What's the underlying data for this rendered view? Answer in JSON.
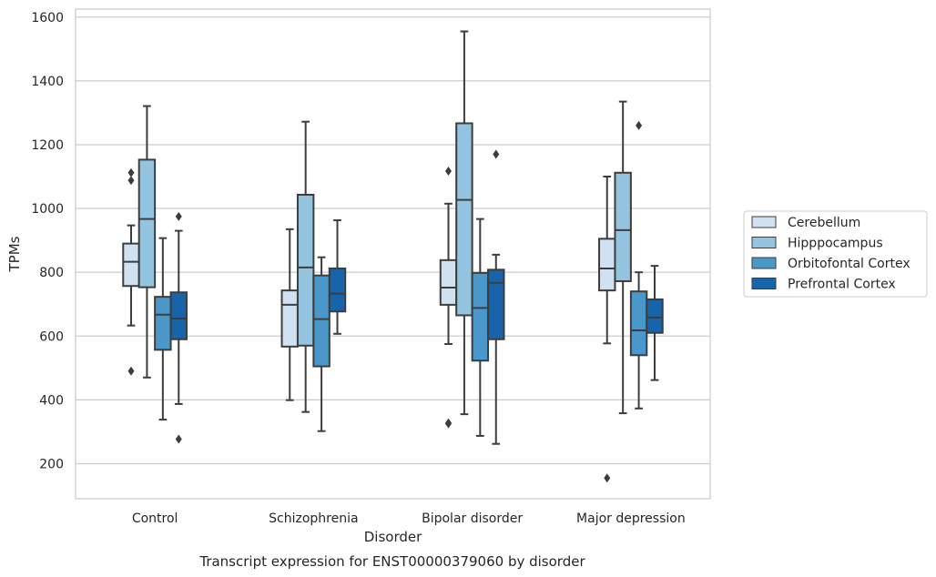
{
  "chart_data": {
    "type": "box",
    "title": "",
    "caption": "Transcript expression for ENST00000379060 by disorder",
    "xlabel": "Disorder",
    "ylabel": "TPMs",
    "ylim": [
      90,
      1625
    ],
    "yticks": [
      200,
      400,
      600,
      800,
      1000,
      1200,
      1400,
      1600
    ],
    "grid": "horizontal",
    "legend_position": "right",
    "categories": [
      "Control",
      "Schizophrenia",
      "Bipolar disorder",
      "Major depression"
    ],
    "series": [
      {
        "name": "Cerebellum",
        "color": "#d0e1f2",
        "boxes": [
          {
            "whisker_low": 633,
            "q1": 757,
            "median": 833,
            "q3": 890,
            "whisker_high": 947,
            "outliers": [
              1112,
              1088,
              490
            ]
          },
          {
            "whisker_low": 399,
            "q1": 567,
            "median": 698,
            "q3": 743,
            "whisker_high": 935,
            "outliers": []
          },
          {
            "whisker_low": 575,
            "q1": 698,
            "median": 752,
            "q3": 838,
            "whisker_high": 1015,
            "outliers": [
              1117,
              328,
              325
            ]
          },
          {
            "whisker_low": 577,
            "q1": 743,
            "median": 812,
            "q3": 905,
            "whisker_high": 1100,
            "outliers": [
              155
            ]
          }
        ]
      },
      {
        "name": "Hipppocampus",
        "color": "#94c4df",
        "boxes": [
          {
            "whisker_low": 470,
            "q1": 753,
            "median": 967,
            "q3": 1153,
            "whisker_high": 1321,
            "outliers": []
          },
          {
            "whisker_low": 362,
            "q1": 570,
            "median": 815,
            "q3": 1043,
            "whisker_high": 1272,
            "outliers": []
          },
          {
            "whisker_low": 355,
            "q1": 665,
            "median": 1027,
            "q3": 1267,
            "whisker_high": 1555,
            "outliers": []
          },
          {
            "whisker_low": 358,
            "q1": 772,
            "median": 932,
            "q3": 1112,
            "whisker_high": 1335,
            "outliers": []
          }
        ]
      },
      {
        "name": "Orbitofontal Cortex",
        "color": "#4a98c9",
        "boxes": [
          {
            "whisker_low": 338,
            "q1": 557,
            "median": 667,
            "q3": 723,
            "whisker_high": 907,
            "outliers": []
          },
          {
            "whisker_low": 302,
            "q1": 505,
            "median": 653,
            "q3": 790,
            "whisker_high": 847,
            "outliers": []
          },
          {
            "whisker_low": 287,
            "q1": 523,
            "median": 688,
            "q3": 798,
            "whisker_high": 967,
            "outliers": []
          },
          {
            "whisker_low": 373,
            "q1": 540,
            "median": 618,
            "q3": 740,
            "whisker_high": 800,
            "outliers": [
              1260
            ]
          }
        ]
      },
      {
        "name": "Prefrontal Cortex",
        "color": "#1764ab",
        "boxes": [
          {
            "whisker_low": 387,
            "q1": 590,
            "median": 655,
            "q3": 737,
            "whisker_high": 930,
            "outliers": [
              975,
              277
            ]
          },
          {
            "whisker_low": 607,
            "q1": 677,
            "median": 733,
            "q3": 812,
            "whisker_high": 963,
            "outliers": []
          },
          {
            "whisker_low": 262,
            "q1": 590,
            "median": 767,
            "q3": 808,
            "whisker_high": 855,
            "outliers": [
              1170
            ]
          },
          {
            "whisker_low": 462,
            "q1": 610,
            "median": 658,
            "q3": 715,
            "whisker_high": 820,
            "outliers": []
          }
        ]
      }
    ]
  }
}
